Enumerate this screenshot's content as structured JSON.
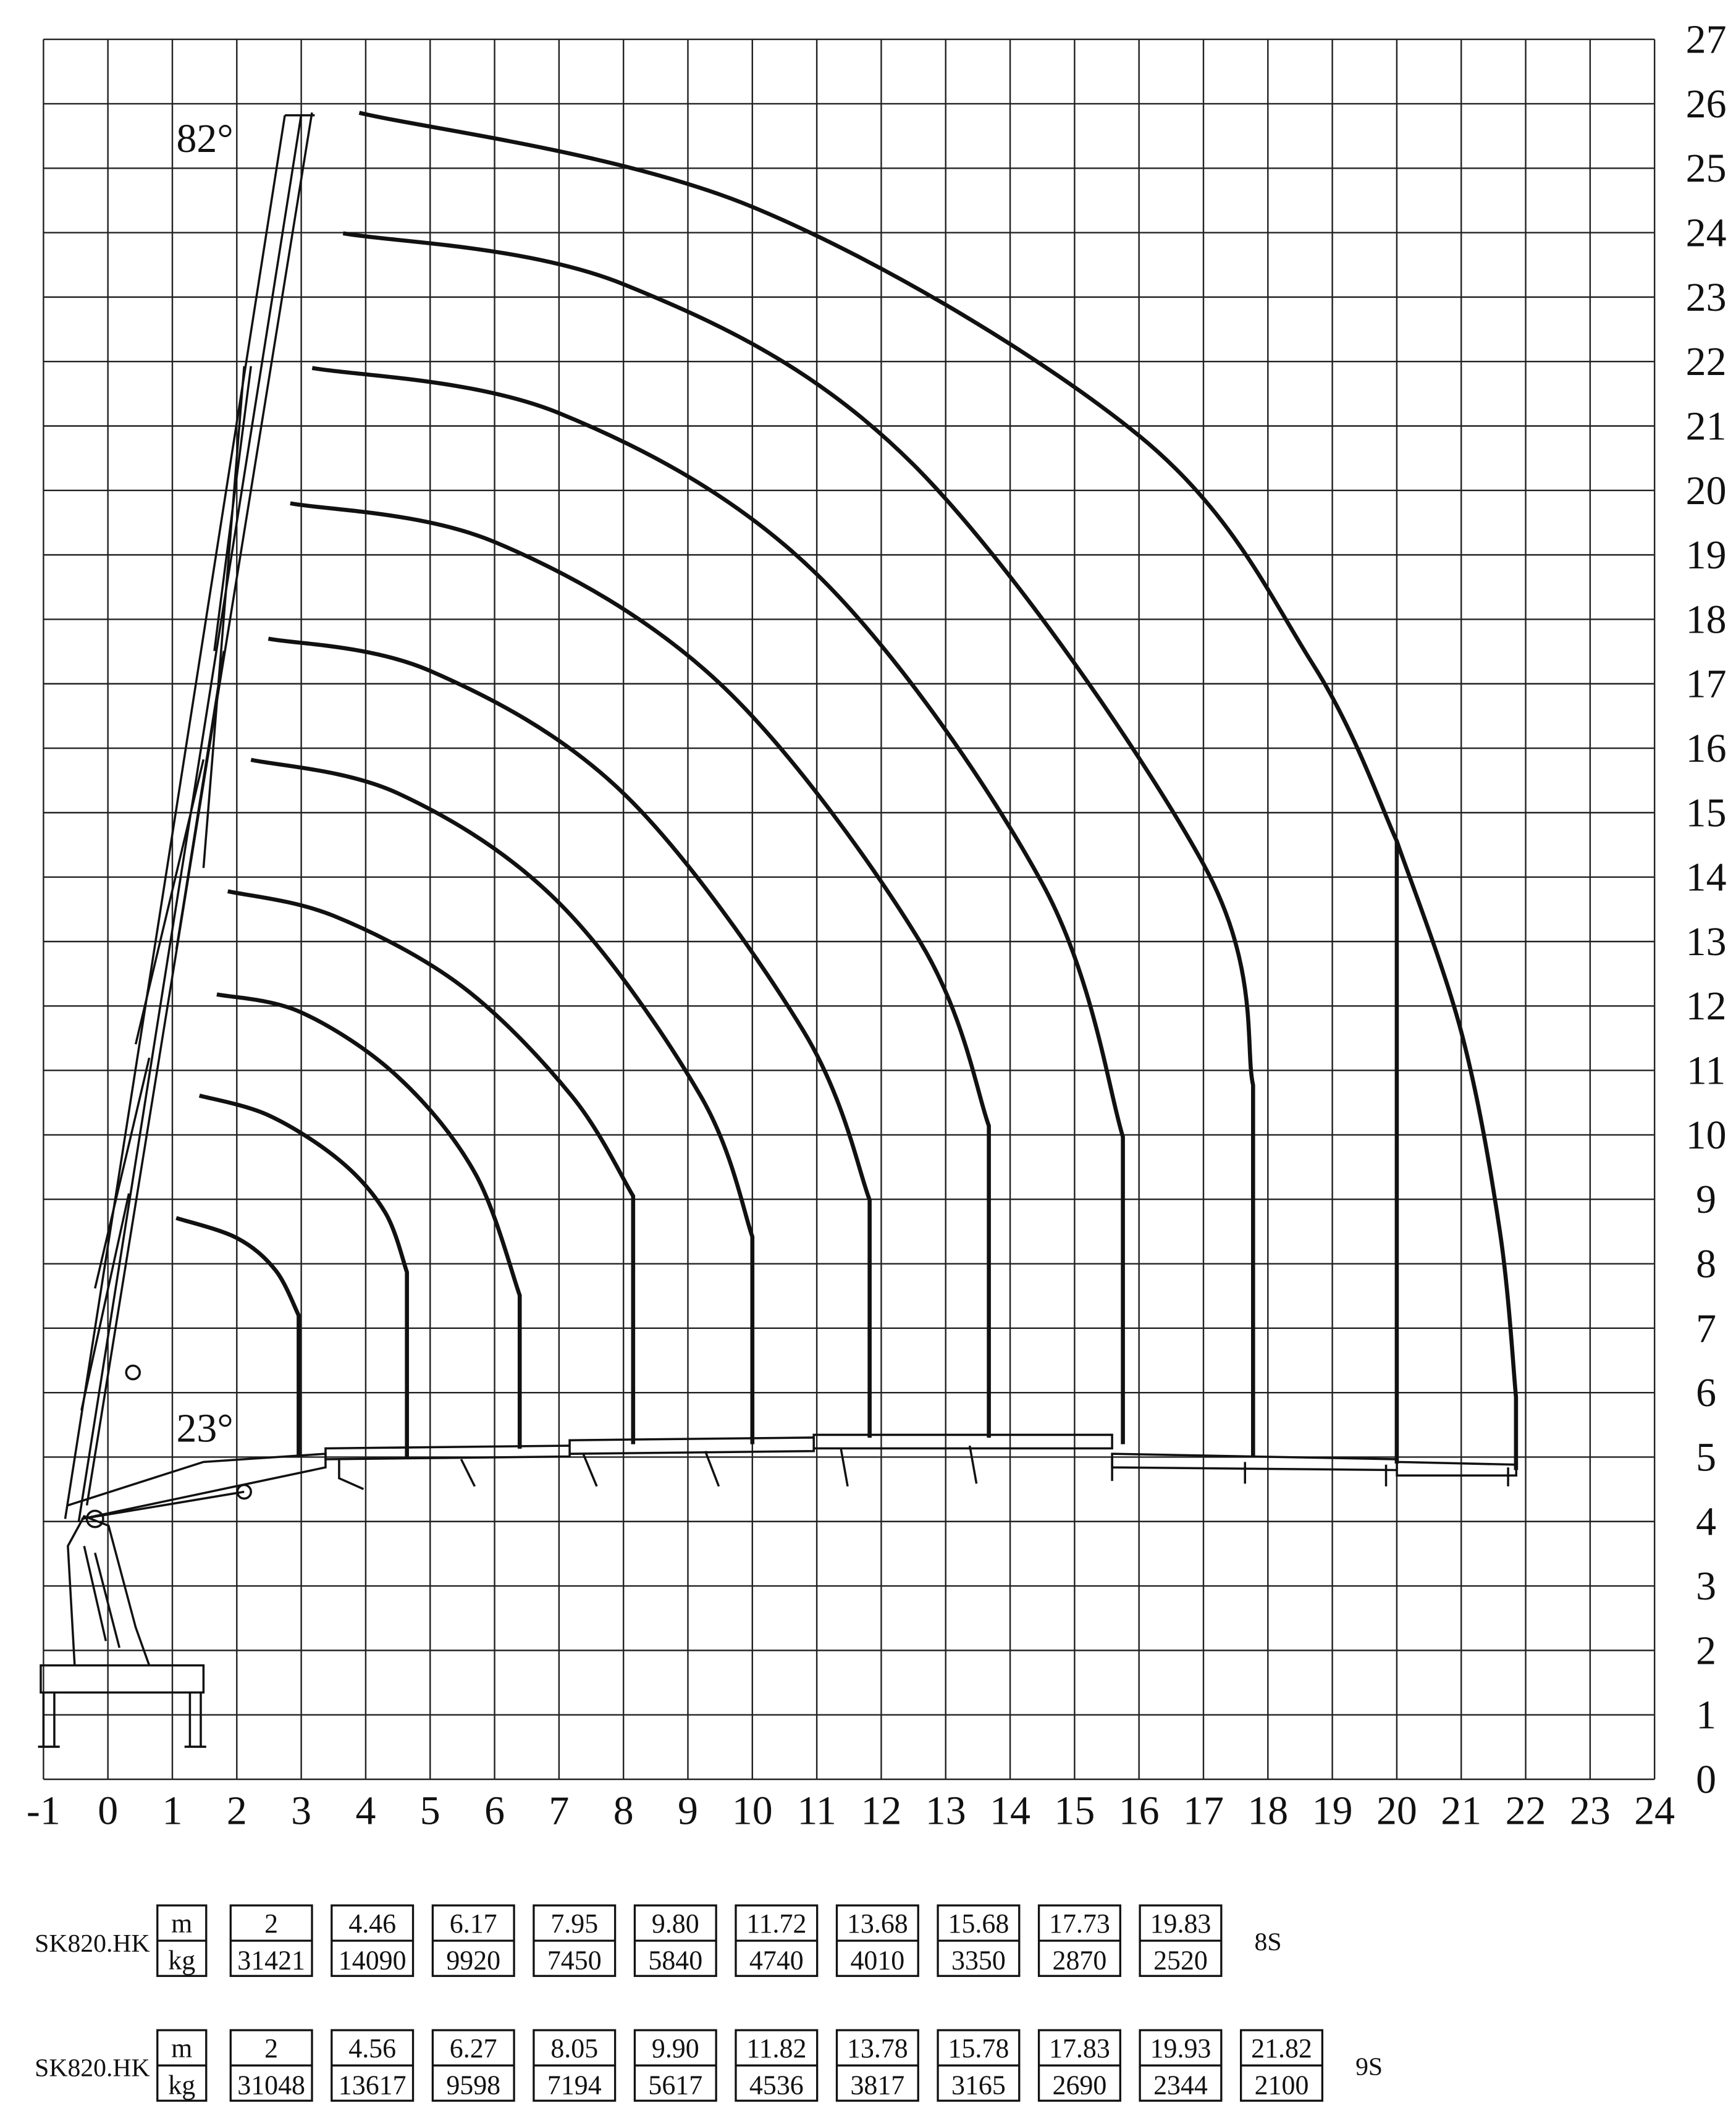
{
  "chart_data": {
    "type": "line",
    "xlim": [
      -1,
      24
    ],
    "ylim": [
      0,
      27
    ],
    "xticks": [
      -1,
      0,
      1,
      2,
      3,
      4,
      5,
      6,
      7,
      8,
      9,
      10,
      11,
      12,
      13,
      14,
      15,
      16,
      17,
      18,
      19,
      20,
      21,
      22,
      23,
      24
    ],
    "yticks": [
      0,
      1,
      2,
      3,
      4,
      5,
      6,
      7,
      8,
      9,
      10,
      11,
      12,
      13,
      14,
      15,
      16,
      17,
      18,
      19,
      20,
      21,
      22,
      23,
      24,
      25,
      26,
      27
    ],
    "grid": true,
    "annotations": [
      "82°",
      "23°"
    ],
    "series": [
      {
        "color": "#111111",
        "x": [
          1.06,
          2.0,
          2.6,
          2.96,
          2.96
        ],
        "values": [
          8.71,
          8.4,
          7.9,
          7.2,
          5.0
        ]
      },
      {
        "color": "#111111",
        "x": [
          1.42,
          2.5,
          3.6,
          4.3,
          4.64,
          4.64
        ],
        "values": [
          10.61,
          10.3,
          9.6,
          8.8,
          7.87,
          4.99
        ]
      },
      {
        "color": "#111111",
        "x": [
          1.69,
          3.0,
          4.5,
          5.7,
          6.39,
          6.39
        ],
        "values": [
          12.18,
          11.9,
          10.9,
          9.4,
          7.51,
          5.13
        ]
      },
      {
        "color": "#111111",
        "x": [
          1.86,
          3.5,
          5.5,
          7.2,
          8.15,
          8.15
        ],
        "values": [
          13.78,
          13.4,
          12.3,
          10.6,
          9.05,
          5.2
        ]
      },
      {
        "color": "#111111",
        "x": [
          2.22,
          4.5,
          7.0,
          9.2,
          10.0,
          10.0
        ],
        "values": [
          15.82,
          15.3,
          13.6,
          10.6,
          8.42,
          5.2
        ]
      },
      {
        "color": "#111111",
        "x": [
          2.49,
          5.0,
          8.0,
          10.8,
          11.82,
          11.82
        ],
        "values": [
          17.7,
          17.2,
          15.3,
          11.6,
          8.99,
          5.3
        ]
      },
      {
        "color": "#111111",
        "x": [
          2.83,
          6.0,
          9.5,
          12.6,
          13.67,
          13.67
        ],
        "values": [
          19.8,
          19.2,
          17.0,
          13.0,
          10.14,
          5.3
        ]
      },
      {
        "color": "#111111",
        "x": [
          3.17,
          7.0,
          11.0,
          14.5,
          15.75,
          15.75
        ],
        "values": [
          21.9,
          21.2,
          18.7,
          13.9,
          9.97,
          5.2
        ]
      },
      {
        "color": "#111111",
        "x": [
          3.65,
          8.0,
          12.5,
          17.0,
          17.77,
          17.77
        ],
        "values": [
          23.99,
          23.2,
          20.4,
          14.2,
          10.77,
          5.0
        ]
      },
      {
        "color": "#111111",
        "x": [
          3.9,
          10.0,
          16.0,
          18.7,
          20.0,
          20.0
        ],
        "values": [
          25.86,
          24.4,
          20.85,
          17.3,
          14.56,
          4.9
        ]
      },
      {
        "color": "#111111",
        "x": [
          20.0,
          21.0,
          21.6,
          21.85,
          21.85
        ],
        "values": [
          14.56,
          11.6,
          8.5,
          5.93,
          4.8
        ]
      }
    ]
  },
  "tables": [
    {
      "model": "SK820.HK",
      "units": [
        "m",
        "kg"
      ],
      "radius": [
        "2",
        "4.46",
        "6.17",
        "7.95",
        "9.80",
        "11.72",
        "13.68",
        "15.68",
        "17.73",
        "19.83"
      ],
      "load": [
        "31421",
        "14090",
        "9920",
        "7450",
        "5840",
        "4740",
        "4010",
        "3350",
        "2870",
        "2520"
      ],
      "sections": "8S"
    },
    {
      "model": "SK820.HK",
      "units": [
        "m",
        "kg"
      ],
      "radius": [
        "2",
        "4.56",
        "6.27",
        "8.05",
        "9.90",
        "11.82",
        "13.78",
        "15.78",
        "17.83",
        "19.93",
        "21.82"
      ],
      "load": [
        "31048",
        "13617",
        "9598",
        "7194",
        "5617",
        "4536",
        "3817",
        "3165",
        "2690",
        "2344",
        "2100"
      ],
      "sections": "9S"
    }
  ]
}
